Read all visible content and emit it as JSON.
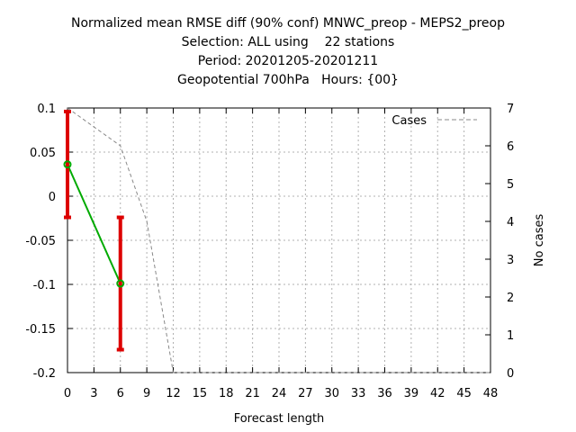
{
  "chart_data": {
    "type": "line",
    "title_lines": [
      "Normalized mean RMSE diff (90% conf) MNWC_preop - MEPS2_preop",
      "Selection: ALL using    22 stations",
      "Period: 20201205-20201211",
      "Geopotential 700hPa   Hours: {00}"
    ],
    "xlabel": "Forecast length",
    "ylabel_right": "No cases",
    "xlim": [
      0,
      48
    ],
    "ylim_left": [
      -0.2,
      0.1
    ],
    "ylim_right": [
      0,
      7
    ],
    "x_ticks": [
      "0",
      "3",
      "6",
      "9",
      "12",
      "15",
      "18",
      "21",
      "24",
      "27",
      "30",
      "33",
      "36",
      "39",
      "42",
      "45",
      "48"
    ],
    "y_ticks_left": [
      "0.1",
      "0.05",
      "0",
      "-0.05",
      "-0.1",
      "-0.15",
      "-0.2"
    ],
    "y_ticks_right": [
      "7",
      "6",
      "5",
      "4",
      "3",
      "2",
      "1",
      "0"
    ],
    "grid": true,
    "legend": {
      "entry": "Cases",
      "placement": "top-right"
    },
    "series": [
      {
        "axis": "left",
        "color": "#00aa00",
        "x": [
          0,
          6
        ],
        "y": [
          0.036,
          -0.099
        ],
        "ci_low": [
          -0.024,
          -0.174
        ],
        "ci_high": [
          0.096,
          -0.024
        ],
        "ci_color": "#dd0000"
      },
      {
        "name": "Cases",
        "axis": "right",
        "color": "#888888",
        "style": "dashed",
        "x": [
          0,
          3,
          6,
          9,
          12,
          15,
          18,
          21,
          24,
          27,
          30,
          33,
          36,
          39,
          42,
          45,
          48
        ],
        "y": [
          7,
          6.5,
          6,
          4,
          0,
          0,
          0,
          0,
          0,
          0,
          0,
          0,
          0,
          0,
          0,
          0,
          0
        ]
      }
    ]
  }
}
